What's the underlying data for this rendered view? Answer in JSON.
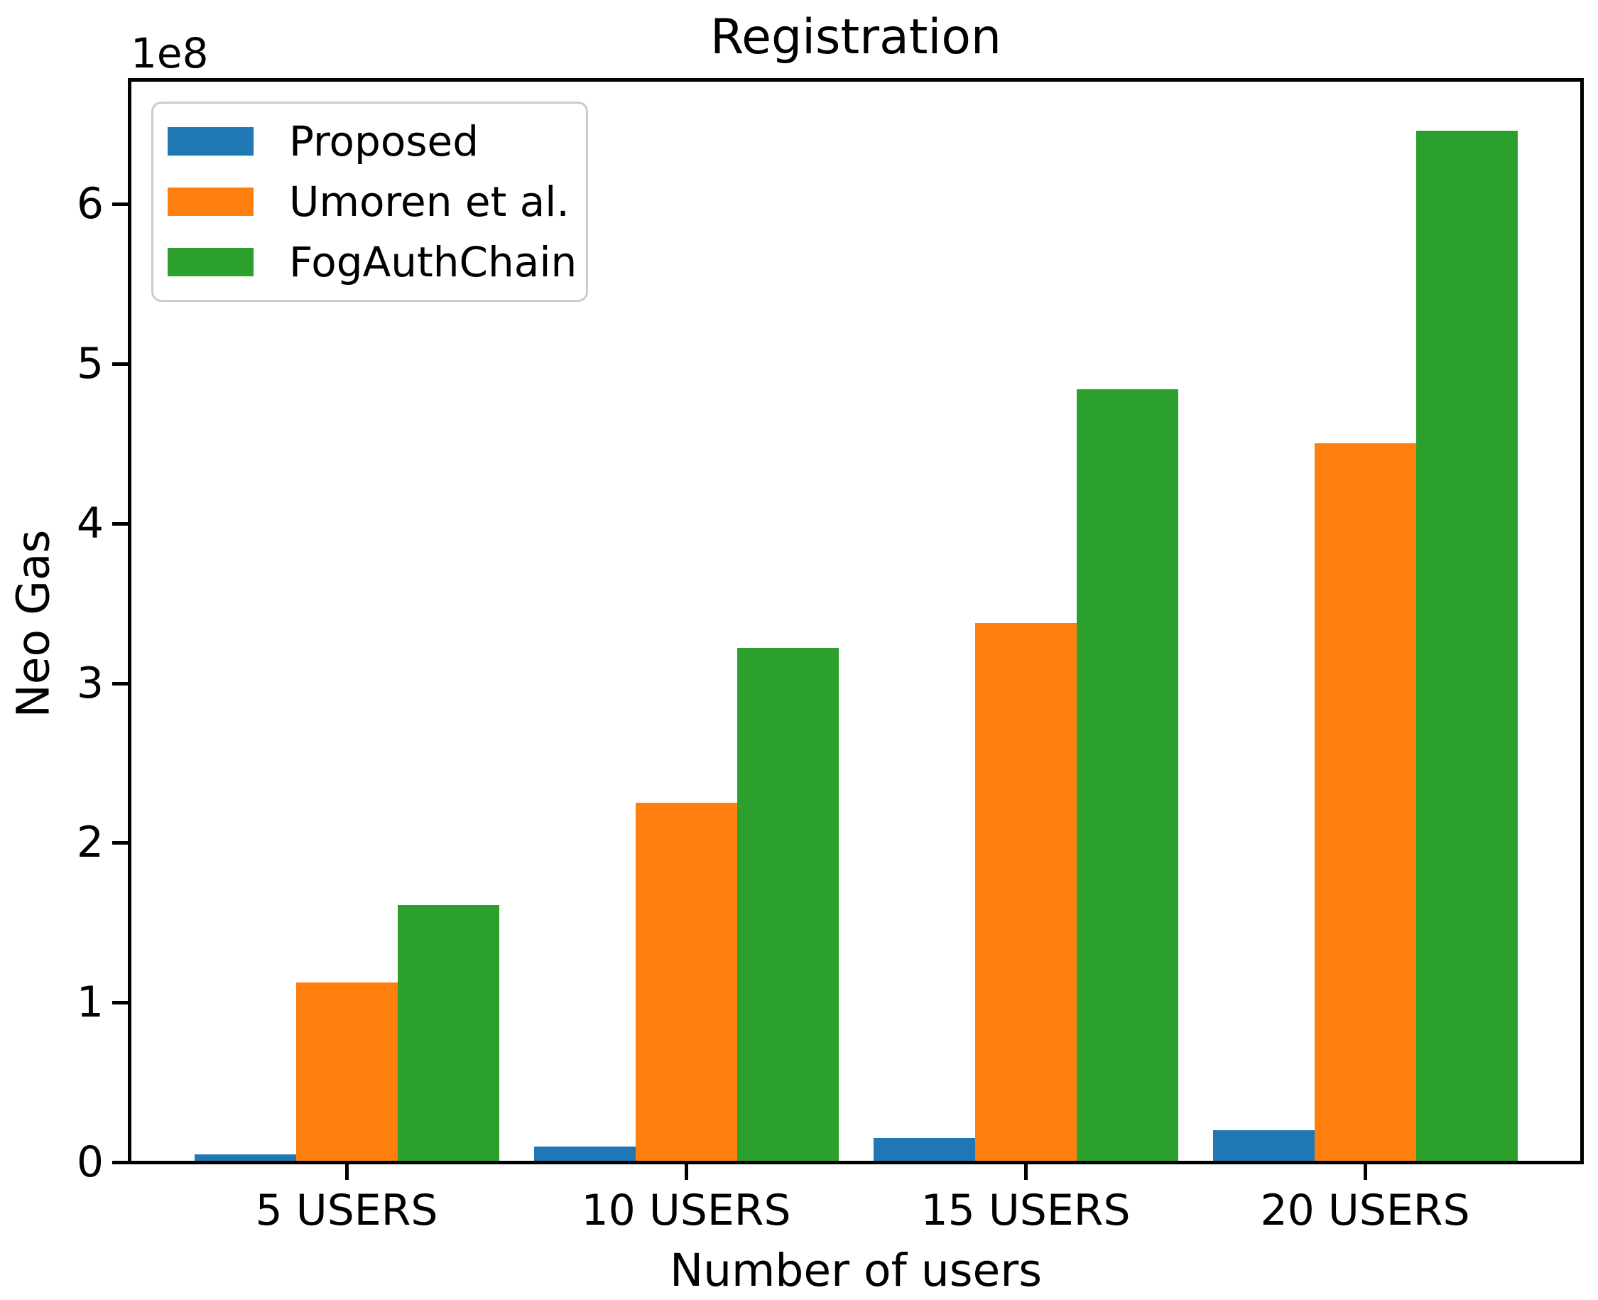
{
  "chart_data": {
    "type": "bar",
    "title": "Registration",
    "xlabel": "Number of users",
    "ylabel": "Neo Gas",
    "y_offset_text": "1e8",
    "categories": [
      "5 USERS",
      "10 USERS",
      "15 USERS",
      "20 USERS"
    ],
    "series": [
      {
        "name": "Proposed",
        "color": "#1f77b4",
        "values": [
          5000000,
          10000000,
          15000000,
          20000000
        ]
      },
      {
        "name": "Umoren et al.",
        "color": "#ff7f0e",
        "values": [
          112500000,
          225000000,
          337500000,
          450000000
        ]
      },
      {
        "name": "FogAuthChain",
        "color": "#2ca02c",
        "values": [
          161000000,
          322000000,
          484000000,
          646000000
        ]
      }
    ],
    "yticks": [
      {
        "label": "0",
        "value": 0
      },
      {
        "label": "1",
        "value": 100000000
      },
      {
        "label": "2",
        "value": 200000000
      },
      {
        "label": "3",
        "value": 300000000
      },
      {
        "label": "4",
        "value": 400000000
      },
      {
        "label": "5",
        "value": 500000000
      },
      {
        "label": "6",
        "value": 600000000
      }
    ],
    "ylim": [
      0,
      678000000
    ],
    "grid": false,
    "legend_position": "upper left",
    "background_color": "#ffffff",
    "text_color": "#000000"
  }
}
